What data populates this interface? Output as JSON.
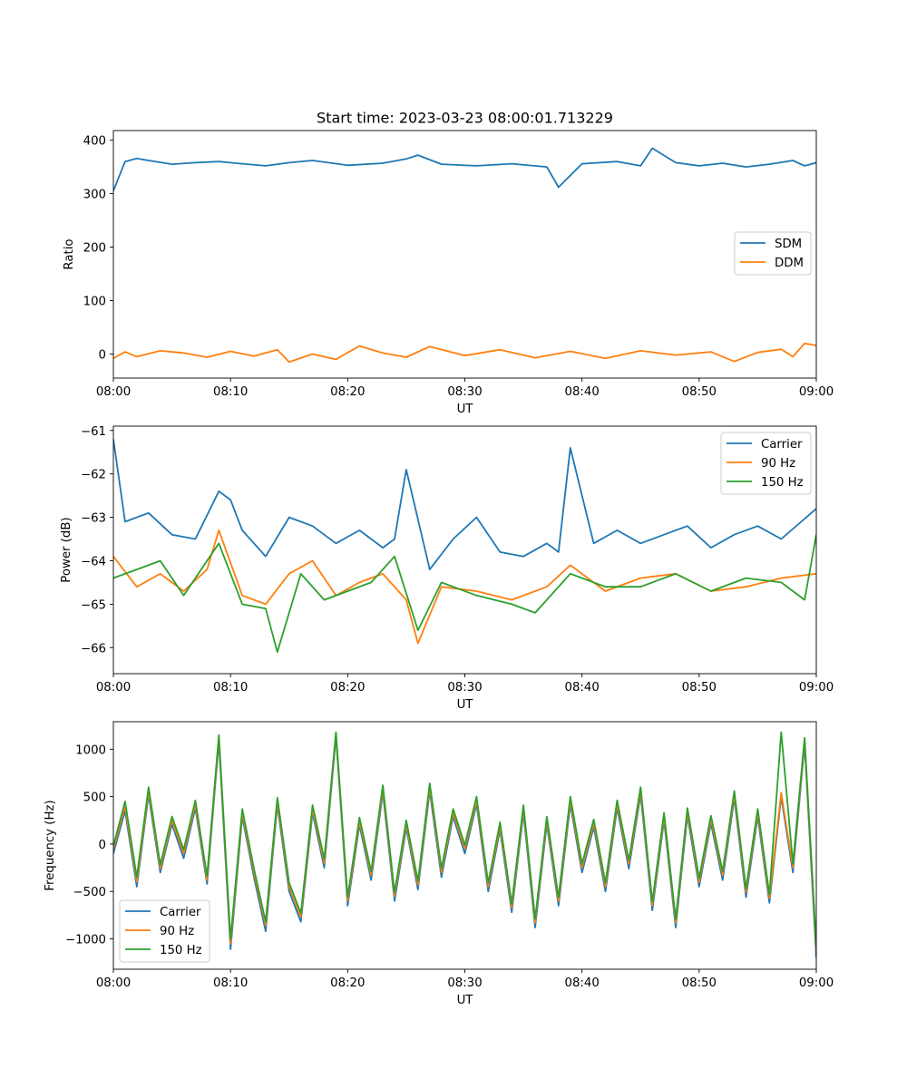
{
  "chart_data": [
    {
      "type": "line",
      "title": "Start time: 2023-03-23 08:00:01.713229",
      "xlabel": "UT",
      "ylabel": "Ratio",
      "xlim": [
        "08:00",
        "09:00"
      ],
      "xticks": [
        "08:00",
        "08:10",
        "08:20",
        "08:30",
        "08:40",
        "08:50",
        "09:00"
      ],
      "ylim": [
        -45,
        418
      ],
      "yticks": [
        0,
        100,
        200,
        300,
        400
      ],
      "ytick_labels": [
        "0",
        "100",
        "200",
        "300",
        "400"
      ],
      "grid": false,
      "legend_position": "center-right",
      "series": [
        {
          "name": "SDM",
          "color": "#1f77b4",
          "x": [
            "08:00",
            "08:01",
            "08:02",
            "08:03",
            "08:05",
            "08:07",
            "08:09",
            "08:11",
            "08:13",
            "08:15",
            "08:17",
            "08:20",
            "08:23",
            "08:25",
            "08:26",
            "08:28",
            "08:31",
            "08:34",
            "08:37",
            "08:38",
            "08:40",
            "08:43",
            "08:45",
            "08:46",
            "08:48",
            "08:50",
            "08:52",
            "08:54",
            "08:56",
            "08:58",
            "08:59",
            "09:00"
          ],
          "values": [
            305,
            360,
            366,
            362,
            355,
            358,
            360,
            356,
            352,
            358,
            362,
            353,
            357,
            365,
            372,
            355,
            352,
            356,
            350,
            312,
            356,
            360,
            352,
            385,
            358,
            352,
            357,
            350,
            355,
            362,
            352,
            358
          ]
        },
        {
          "name": "DDM",
          "color": "#ff7f0e",
          "x": [
            "08:00",
            "08:01",
            "08:02",
            "08:04",
            "08:06",
            "08:08",
            "08:10",
            "08:12",
            "08:14",
            "08:15",
            "08:17",
            "08:19",
            "08:21",
            "08:23",
            "08:25",
            "08:27",
            "08:30",
            "08:33",
            "08:36",
            "08:39",
            "08:42",
            "08:45",
            "08:48",
            "08:51",
            "08:53",
            "08:55",
            "08:57",
            "08:58",
            "08:59",
            "09:00"
          ],
          "values": [
            -8,
            4,
            -5,
            6,
            2,
            -6,
            5,
            -4,
            8,
            -15,
            0,
            -10,
            15,
            2,
            -6,
            14,
            -3,
            8,
            -7,
            5,
            -8,
            6,
            -2,
            4,
            -14,
            3,
            9,
            -5,
            20,
            16
          ]
        }
      ]
    },
    {
      "type": "line",
      "xlabel": "UT",
      "ylabel": "Power (dB)",
      "xlim": [
        "08:00",
        "09:00"
      ],
      "xticks": [
        "08:00",
        "08:10",
        "08:20",
        "08:30",
        "08:40",
        "08:50",
        "09:00"
      ],
      "ylim": [
        -66.6,
        -60.9
      ],
      "yticks": [
        -66,
        -65,
        -64,
        -63,
        -62,
        -61
      ],
      "ytick_labels": [
        "−66",
        "−65",
        "−64",
        "−63",
        "−62",
        "−61"
      ],
      "grid": false,
      "legend_position": "top-right",
      "series": [
        {
          "name": "Carrier",
          "color": "#1f77b4",
          "x": [
            "08:00",
            "08:01",
            "08:03",
            "08:05",
            "08:07",
            "08:09",
            "08:10",
            "08:11",
            "08:13",
            "08:15",
            "08:17",
            "08:19",
            "08:21",
            "08:23",
            "08:24",
            "08:25",
            "08:27",
            "08:29",
            "08:31",
            "08:33",
            "08:35",
            "08:37",
            "08:38",
            "08:39",
            "08:41",
            "08:43",
            "08:45",
            "08:47",
            "08:49",
            "08:51",
            "08:53",
            "08:55",
            "08:57",
            "09:00"
          ],
          "values": [
            -61.2,
            -63.1,
            -62.9,
            -63.4,
            -63.5,
            -62.4,
            -62.6,
            -63.3,
            -63.9,
            -63.0,
            -63.2,
            -63.6,
            -63.3,
            -63.7,
            -63.5,
            -61.9,
            -64.2,
            -63.5,
            -63.0,
            -63.8,
            -63.9,
            -63.6,
            -63.8,
            -61.4,
            -63.6,
            -63.3,
            -63.6,
            -63.4,
            -63.2,
            -63.7,
            -63.4,
            -63.2,
            -63.5,
            -62.8
          ]
        },
        {
          "name": "90 Hz",
          "color": "#ff7f0e",
          "x": [
            "08:00",
            "08:02",
            "08:04",
            "08:06",
            "08:08",
            "08:09",
            "08:11",
            "08:13",
            "08:15",
            "08:17",
            "08:19",
            "08:21",
            "08:23",
            "08:25",
            "08:26",
            "08:28",
            "08:31",
            "08:34",
            "08:37",
            "08:39",
            "08:42",
            "08:45",
            "08:48",
            "08:51",
            "08:54",
            "08:57",
            "09:00"
          ],
          "values": [
            -63.9,
            -64.6,
            -64.3,
            -64.7,
            -64.2,
            -63.3,
            -64.8,
            -65.0,
            -64.3,
            -64.0,
            -64.8,
            -64.5,
            -64.3,
            -64.9,
            -65.9,
            -64.6,
            -64.7,
            -64.9,
            -64.6,
            -64.1,
            -64.7,
            -64.4,
            -64.3,
            -64.7,
            -64.6,
            -64.4,
            -64.3
          ]
        },
        {
          "name": "150 Hz",
          "color": "#2ca02c",
          "x": [
            "08:00",
            "08:02",
            "08:04",
            "08:06",
            "08:08",
            "08:09",
            "08:11",
            "08:13",
            "08:14",
            "08:16",
            "08:18",
            "08:20",
            "08:22",
            "08:24",
            "08:26",
            "08:28",
            "08:31",
            "08:34",
            "08:36",
            "08:39",
            "08:42",
            "08:45",
            "08:48",
            "08:51",
            "08:54",
            "08:57",
            "08:59",
            "09:00"
          ],
          "values": [
            -64.4,
            -64.2,
            -64.0,
            -64.8,
            -64.0,
            -63.6,
            -65.0,
            -65.1,
            -66.1,
            -64.3,
            -64.9,
            -64.7,
            -64.5,
            -63.9,
            -65.6,
            -64.5,
            -64.8,
            -65.0,
            -65.2,
            -64.3,
            -64.6,
            -64.6,
            -64.3,
            -64.7,
            -64.4,
            -64.5,
            -64.9,
            -63.4
          ]
        }
      ]
    },
    {
      "type": "line",
      "xlabel": "UT",
      "ylabel": "Frequency (Hz)",
      "xlim": [
        "08:00",
        "09:00"
      ],
      "xticks": [
        "08:00",
        "08:10",
        "08:20",
        "08:30",
        "08:40",
        "08:50",
        "09:00"
      ],
      "ylim": [
        -1320,
        1290
      ],
      "yticks": [
        -1000,
        -500,
        0,
        500,
        1000
      ],
      "ytick_labels": [
        "−1000",
        "−500",
        "0",
        "500",
        "1000"
      ],
      "grid": false,
      "legend_position": "bottom-left",
      "series": [
        {
          "name": "Carrier",
          "color": "#1f77b4",
          "x": [
            "08:00",
            "08:01",
            "08:02",
            "08:03",
            "08:04",
            "08:05",
            "08:06",
            "08:07",
            "08:08",
            "08:09",
            "08:10",
            "08:11",
            "08:12",
            "08:13",
            "08:14",
            "08:15",
            "08:16",
            "08:17",
            "08:18",
            "08:19",
            "08:20",
            "08:21",
            "08:22",
            "08:23",
            "08:24",
            "08:25",
            "08:26",
            "08:27",
            "08:28",
            "08:29",
            "08:30",
            "08:31",
            "08:32",
            "08:33",
            "08:34",
            "08:35",
            "08:36",
            "08:37",
            "08:38",
            "08:39",
            "08:40",
            "08:41",
            "08:42",
            "08:43",
            "08:44",
            "08:45",
            "08:46",
            "08:47",
            "08:48",
            "08:49",
            "08:50",
            "08:51",
            "08:52",
            "08:53",
            "08:54",
            "08:55",
            "08:56",
            "08:57",
            "08:58",
            "08:59",
            "09:00"
          ],
          "values": [
            -100,
            350,
            -450,
            520,
            -300,
            210,
            -150,
            380,
            -420,
            1080,
            -1110,
            290,
            -350,
            -920,
            410,
            -500,
            -820,
            330,
            -250,
            1130,
            -650,
            200,
            -380,
            540,
            -600,
            170,
            -480,
            560,
            -350,
            290,
            -100,
            420,
            -500,
            150,
            -720,
            330,
            -880,
            210,
            -650,
            420,
            -300,
            180,
            -500,
            380,
            -260,
            520,
            -700,
            250,
            -880,
            300,
            -450,
            220,
            -380,
            480,
            -560,
            290,
            -620,
            500,
            -300,
            1050,
            -1200
          ]
        },
        {
          "name": "90 Hz",
          "color": "#ff7f0e",
          "x": [
            "08:00",
            "08:01",
            "08:02",
            "08:03",
            "08:04",
            "08:05",
            "08:06",
            "08:07",
            "08:08",
            "08:09",
            "08:10",
            "08:11",
            "08:12",
            "08:13",
            "08:14",
            "08:15",
            "08:16",
            "08:17",
            "08:18",
            "08:19",
            "08:20",
            "08:21",
            "08:22",
            "08:23",
            "08:24",
            "08:25",
            "08:26",
            "08:27",
            "08:28",
            "08:29",
            "08:30",
            "08:31",
            "08:32",
            "08:33",
            "08:34",
            "08:35",
            "08:36",
            "08:37",
            "08:38",
            "08:39",
            "08:40",
            "08:41",
            "08:42",
            "08:43",
            "08:44",
            "08:45",
            "08:46",
            "08:47",
            "08:48",
            "08:49",
            "08:50",
            "08:51",
            "08:52",
            "08:53",
            "08:54",
            "08:55",
            "08:56",
            "08:57",
            "08:58",
            "08:59",
            "09:00"
          ],
          "values": [
            -50,
            400,
            -400,
            560,
            -260,
            250,
            -100,
            420,
            -380,
            1120,
            -1050,
            330,
            -300,
            -860,
            450,
            -450,
            -770,
            370,
            -200,
            1160,
            -600,
            240,
            -330,
            580,
            -550,
            210,
            -430,
            600,
            -300,
            330,
            -50,
            460,
            -450,
            190,
            -670,
            370,
            -830,
            250,
            -600,
            460,
            -250,
            220,
            -450,
            420,
            -210,
            560,
            -650,
            290,
            -830,
            340,
            -400,
            260,
            -330,
            520,
            -510,
            330,
            -570,
            540,
            -250,
            1090,
            -1130
          ]
        },
        {
          "name": "150 Hz",
          "color": "#2ca02c",
          "x": [
            "08:00",
            "08:01",
            "08:02",
            "08:03",
            "08:04",
            "08:05",
            "08:06",
            "08:07",
            "08:08",
            "08:09",
            "08:10",
            "08:11",
            "08:12",
            "08:13",
            "08:14",
            "08:15",
            "08:16",
            "08:17",
            "08:18",
            "08:19",
            "08:20",
            "08:21",
            "08:22",
            "08:23",
            "08:24",
            "08:25",
            "08:26",
            "08:27",
            "08:28",
            "08:29",
            "08:30",
            "08:31",
            "08:32",
            "08:33",
            "08:34",
            "08:35",
            "08:36",
            "08:37",
            "08:38",
            "08:39",
            "08:40",
            "08:41",
            "08:42",
            "08:43",
            "08:44",
            "08:45",
            "08:46",
            "08:47",
            "08:48",
            "08:49",
            "08:50",
            "08:51",
            "08:52",
            "08:53",
            "08:54",
            "08:55",
            "08:56",
            "08:57",
            "08:58",
            "08:59",
            "09:00"
          ],
          "values": [
            -20,
            450,
            -350,
            600,
            -220,
            290,
            -60,
            460,
            -340,
            1150,
            -1000,
            370,
            -260,
            -820,
            490,
            -410,
            -730,
            410,
            -160,
            1180,
            -560,
            280,
            -290,
            620,
            -510,
            250,
            -390,
            640,
            -260,
            370,
            -10,
            500,
            -410,
            230,
            -630,
            410,
            -790,
            290,
            -560,
            500,
            -210,
            260,
            -410,
            460,
            -170,
            600,
            -610,
            330,
            -790,
            380,
            -360,
            300,
            -290,
            560,
            -470,
            370,
            -530,
            1180,
            -210,
            1120,
            -1080
          ]
        }
      ]
    }
  ]
}
